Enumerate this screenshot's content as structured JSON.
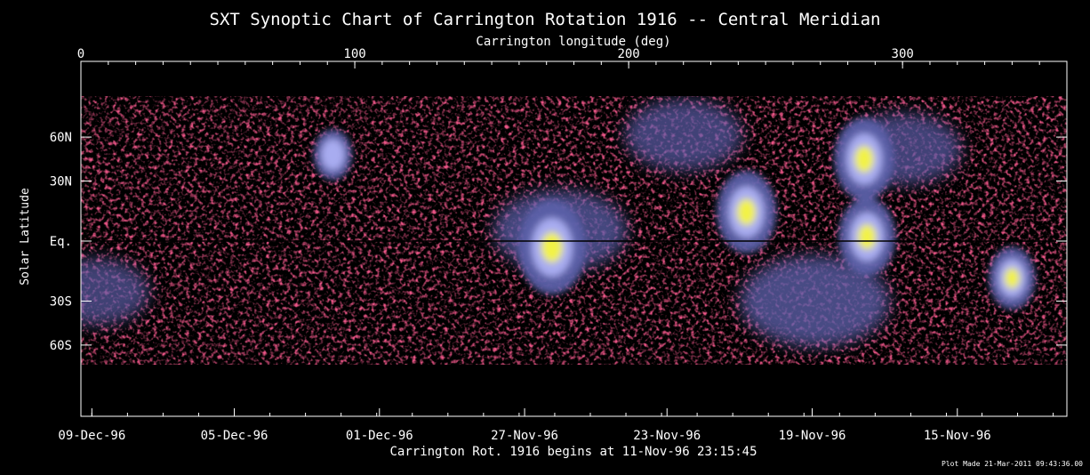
{
  "chart_data": {
    "type": "heatmap",
    "title": "SXT Synoptic Chart of Carrington Rotation 1916 -- Central Meridian",
    "top_axis_label": "Carrington longitude (deg)",
    "top_ticks": [
      "0",
      "100",
      "200",
      "300"
    ],
    "top_tick_values": [
      0,
      100,
      200,
      300
    ],
    "xlim": [
      0,
      360
    ],
    "ylabel": "Solar Latitude",
    "y_ticks": [
      "60N",
      "30N",
      "Eq.",
      "30S",
      "60S"
    ],
    "y_tick_values": [
      60,
      30,
      0,
      -30,
      -60
    ],
    "ylim": [
      -90,
      90
    ],
    "latitude_scale": "sine",
    "bottom_ticks": [
      "09-Dec-96",
      "05-Dec-96",
      "01-Dec-96",
      "27-Nov-96",
      "23-Nov-96",
      "19-Nov-96",
      "15-Nov-96"
    ],
    "bottom_tick_longitudes": [
      4,
      56,
      109,
      162,
      214,
      267,
      320
    ],
    "bottom_label": "Carrington Rot. 1916 begins at 11-Nov-96 23:15:45",
    "footer": "Plot Made 21-Mar-2011 09:43:36.00",
    "grid": false,
    "colorscale": [
      "#000000",
      "#d3173c",
      "#5b5fa8",
      "#a8acf0",
      "#f2f246"
    ],
    "bright_regions": [
      {
        "lon": 172,
        "lat": -3,
        "intensity": 1.0
      },
      {
        "lon": 243,
        "lat": 14,
        "intensity": 0.85
      },
      {
        "lon": 286,
        "lat": 43,
        "intensity": 0.85
      },
      {
        "lon": 287,
        "lat": 2,
        "intensity": 0.8
      },
      {
        "lon": 340,
        "lat": -18,
        "intensity": 0.6
      },
      {
        "lon": 92,
        "lat": 46,
        "intensity": 0.45
      }
    ],
    "diffuse_regions": [
      {
        "lon": 268,
        "lat": -30,
        "intensity": 0.6
      },
      {
        "lon": 175,
        "lat": 5,
        "intensity": 0.5
      },
      {
        "lon": 220,
        "lat": 62,
        "intensity": 0.4
      },
      {
        "lon": 300,
        "lat": 50,
        "intensity": 0.4
      },
      {
        "lon": 5,
        "lat": -25,
        "intensity": 0.35
      }
    ]
  }
}
